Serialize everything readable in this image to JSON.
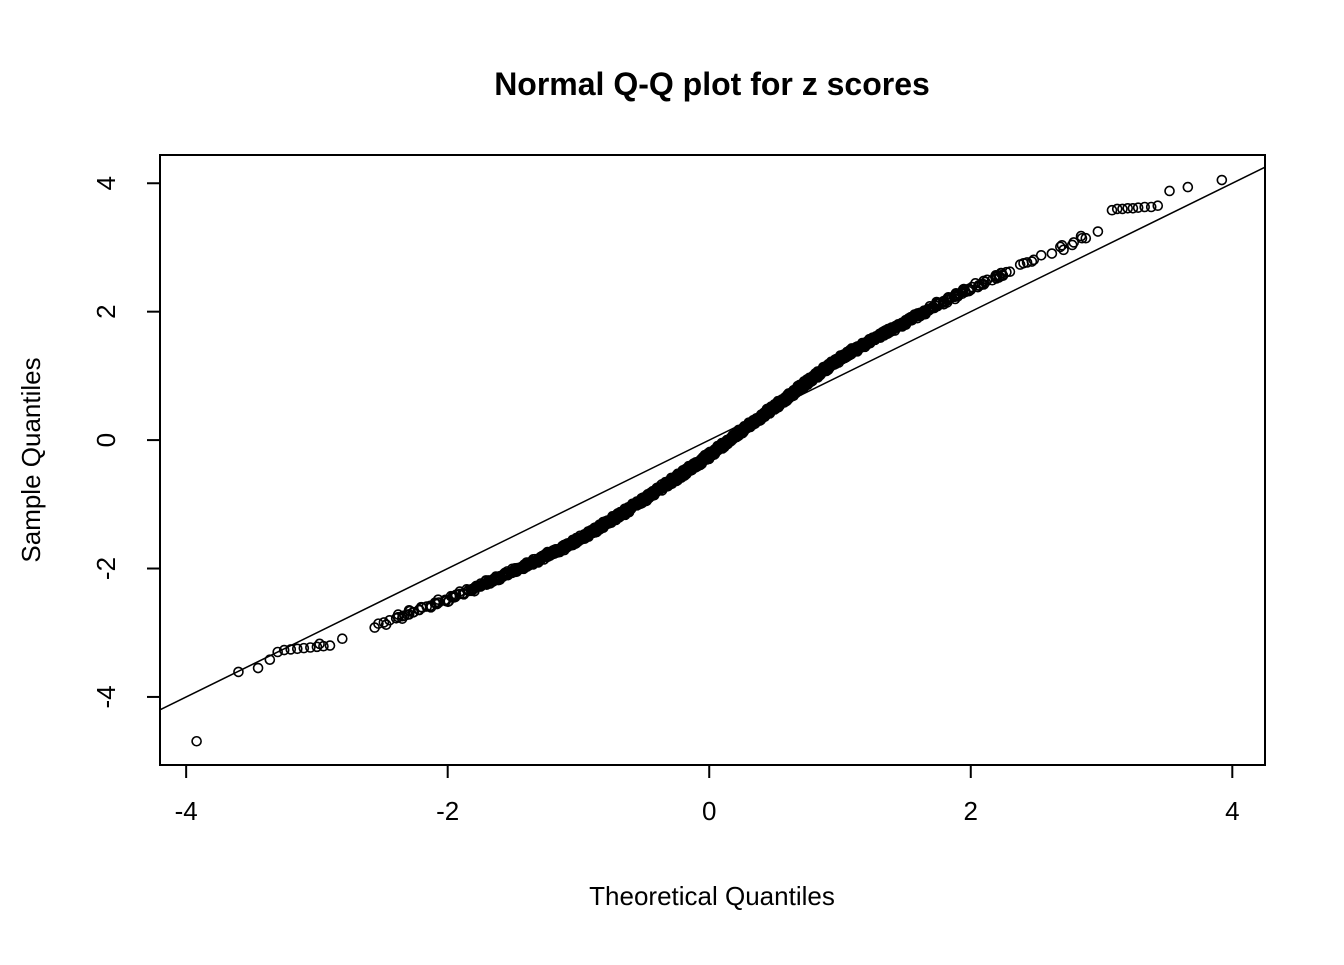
{
  "chart_data": {
    "type": "scatter",
    "subtype": "qq-plot",
    "title": "Normal Q-Q plot for z scores",
    "xlabel": "Theoretical Quantiles",
    "ylabel": "Sample Quantiles",
    "xlim": [
      -4.2,
      4.25
    ],
    "ylim": [
      -5.06,
      4.44
    ],
    "xticks": [
      -4,
      -2,
      0,
      2,
      4
    ],
    "yticks": [
      -4,
      -2,
      0,
      2,
      4
    ],
    "grid": false,
    "legend": false,
    "ref_line": {
      "slope": 1,
      "intercept": 0,
      "color": "#000000"
    },
    "marker": {
      "type": "open-circle",
      "radius_px": 4.5,
      "stroke_px": 1.6,
      "color": "#000000"
    },
    "band_point_count": 2000,
    "band_jitter": 0.055,
    "band_control_points": [
      [
        -3.0,
        -3.22
      ],
      [
        -2.8,
        -3.07
      ],
      [
        -2.6,
        -2.93
      ],
      [
        -2.4,
        -2.78
      ],
      [
        -2.2,
        -2.63
      ],
      [
        -2.0,
        -2.48
      ],
      [
        -1.8,
        -2.31
      ],
      [
        -1.6,
        -2.13
      ],
      [
        -1.4,
        -1.95
      ],
      [
        -1.2,
        -1.76
      ],
      [
        -1.0,
        -1.55
      ],
      [
        -0.8,
        -1.31
      ],
      [
        -0.6,
        -1.06
      ],
      [
        -0.4,
        -0.79
      ],
      [
        -0.2,
        -0.52
      ],
      [
        0.0,
        -0.24
      ],
      [
        0.2,
        0.07
      ],
      [
        0.4,
        0.37
      ],
      [
        0.6,
        0.67
      ],
      [
        0.8,
        0.98
      ],
      [
        1.0,
        1.27
      ],
      [
        1.2,
        1.51
      ],
      [
        1.4,
        1.73
      ],
      [
        1.6,
        1.95
      ],
      [
        1.8,
        2.16
      ],
      [
        2.0,
        2.36
      ],
      [
        2.2,
        2.55
      ],
      [
        2.4,
        2.73
      ],
      [
        2.6,
        2.91
      ],
      [
        2.8,
        3.09
      ],
      [
        3.0,
        3.3
      ],
      [
        3.1,
        3.42
      ],
      [
        3.2,
        3.55
      ]
    ],
    "left_tail_points": [
      [
        -3.6,
        -3.61
      ],
      [
        -3.45,
        -3.55
      ],
      [
        -3.36,
        -3.42
      ],
      [
        -3.3,
        -3.3
      ],
      [
        -3.25,
        -3.27
      ],
      [
        -3.2,
        -3.26
      ],
      [
        -3.15,
        -3.25
      ],
      [
        -3.1,
        -3.24
      ],
      [
        -3.05,
        -3.23
      ],
      [
        -3.0,
        -3.22
      ],
      [
        -2.95,
        -3.21
      ],
      [
        -2.9,
        -3.2
      ]
    ],
    "right_tail_points": [
      [
        3.08,
        3.58
      ],
      [
        3.12,
        3.6
      ],
      [
        3.16,
        3.6
      ],
      [
        3.2,
        3.61
      ],
      [
        3.24,
        3.61
      ],
      [
        3.28,
        3.62
      ],
      [
        3.33,
        3.63
      ],
      [
        3.38,
        3.63
      ],
      [
        3.43,
        3.65
      ],
      [
        3.52,
        3.88
      ],
      [
        3.66,
        3.94
      ],
      [
        3.92,
        4.05
      ]
    ],
    "outlier_points": [
      [
        -3.92,
        -4.69
      ]
    ]
  }
}
